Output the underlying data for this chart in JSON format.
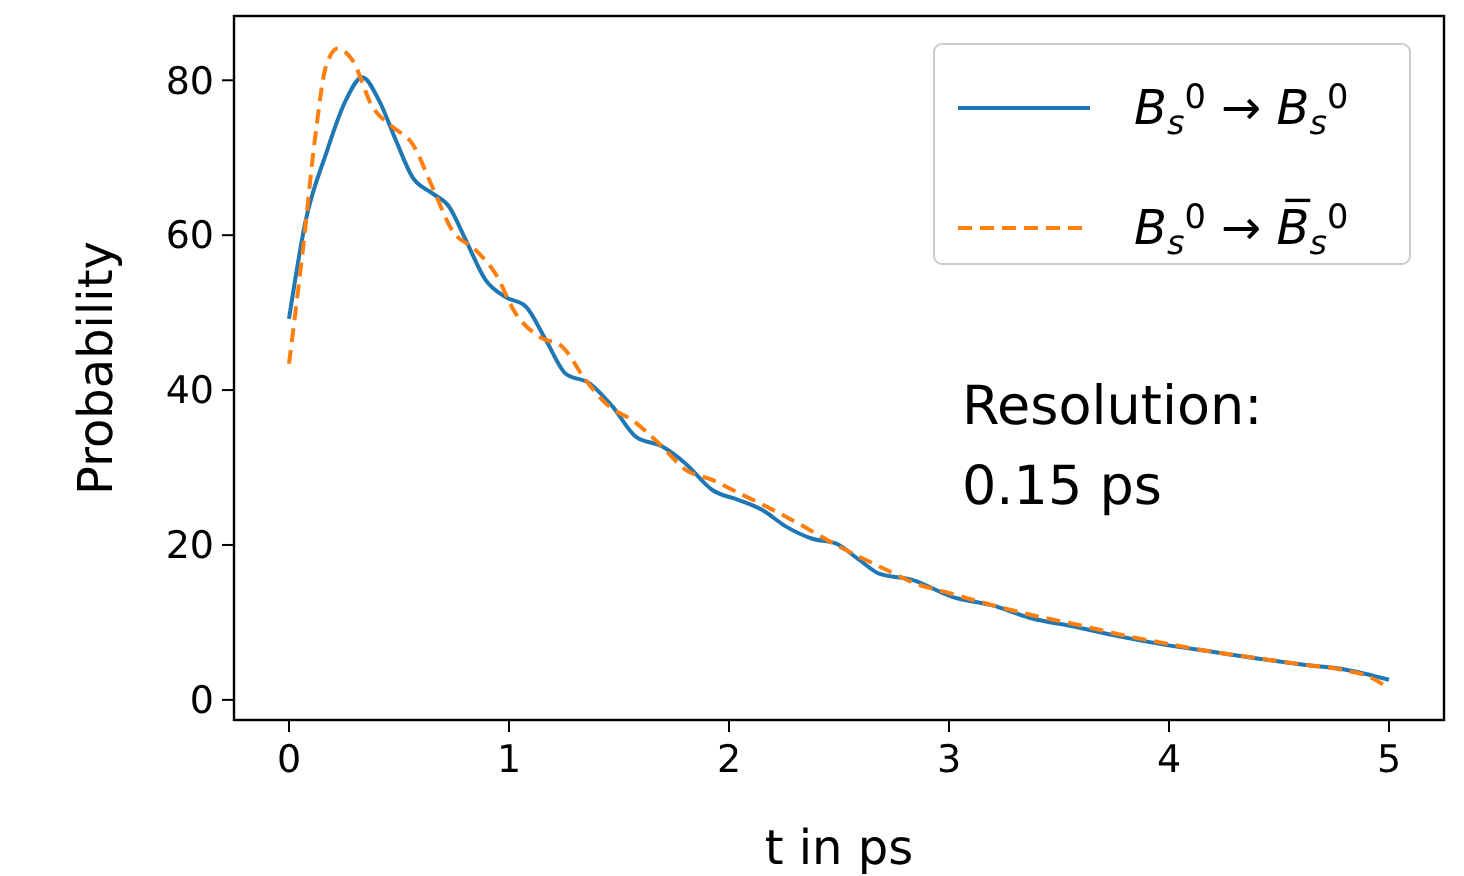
{
  "chart_data": {
    "type": "line",
    "xlabel": "t in ps",
    "ylabel": "Probability",
    "annotations": [
      "Resolution:\n0.15 ps"
    ],
    "xlim": [
      -0.25,
      5.25
    ],
    "ylim": [
      -2.6,
      88.3
    ],
    "xticks": [
      0,
      1,
      2,
      3,
      4,
      5
    ],
    "yticks": [
      0,
      20,
      40,
      60,
      80
    ],
    "grid": false,
    "legend": "top right",
    "series": [
      {
        "name": "B$_{s}$$^{0}$ → B$_{s}$$^{0}$",
        "color": "#1f77b4",
        "line_style": "solid",
        "x": [
          0,
          0.076,
          0.167,
          0.258,
          0.333,
          0.409,
          0.485,
          0.561,
          0.652,
          0.727,
          0.803,
          0.894,
          0.985,
          1.076,
          1.167,
          1.258,
          1.364,
          1.47,
          1.576,
          1.697,
          1.803,
          1.924,
          2.045,
          2.152,
          2.258,
          2.379,
          2.485,
          2.591,
          2.682,
          2.833,
          3.015,
          3.197,
          3.379,
          3.561,
          3.773,
          3.985,
          4.197,
          4.409,
          4.621,
          4.803,
          5
        ],
        "values": [
          49.2,
          61.9,
          70.4,
          77.4,
          80.4,
          77.4,
          72.3,
          67.5,
          65.4,
          63.7,
          59.4,
          54.2,
          52,
          50.8,
          46.5,
          42.1,
          40.9,
          37.9,
          34,
          32.7,
          30.5,
          27.1,
          25.8,
          24.5,
          22.4,
          20.8,
          20.2,
          18.1,
          16.3,
          15.5,
          13.3,
          12.2,
          10.5,
          9.5,
          8.2,
          7.1,
          6.2,
          5.3,
          4.5,
          3.9,
          2.6
        ]
      },
      {
        "name": "B$_{s}$$^{0}$ → B̅$_{s}$$^{0}$",
        "color": "#ff7f0e",
        "line_style": "dashed",
        "x": [
          0,
          0.061,
          0.121,
          0.167,
          0.221,
          0.288,
          0.379,
          0.47,
          0.561,
          0.652,
          0.742,
          0.848,
          0.939,
          1.03,
          1.136,
          1.242,
          1.348,
          1.455,
          1.561,
          1.682,
          1.803,
          1.924,
          2.045,
          2.167,
          2.288,
          2.5,
          2.7,
          2.85,
          3,
          3.2,
          3.4,
          3.6,
          3.8,
          4,
          4.2,
          4.4,
          4.6,
          4.8,
          4.9,
          5
        ],
        "values": [
          43.4,
          57.6,
          73.1,
          81.7,
          84.1,
          82.6,
          76.6,
          74,
          71.8,
          66.2,
          60.6,
          58.1,
          55,
          49.9,
          46.9,
          45.6,
          41.3,
          37.9,
          36.1,
          33.1,
          29.7,
          28.4,
          26.7,
          25,
          23.2,
          19.8,
          17,
          15,
          13.8,
          12.2,
          10.8,
          9.6,
          8.3,
          7.2,
          6.2,
          5.4,
          4.6,
          3.8,
          3.1,
          1.5
        ]
      }
    ]
  }
}
